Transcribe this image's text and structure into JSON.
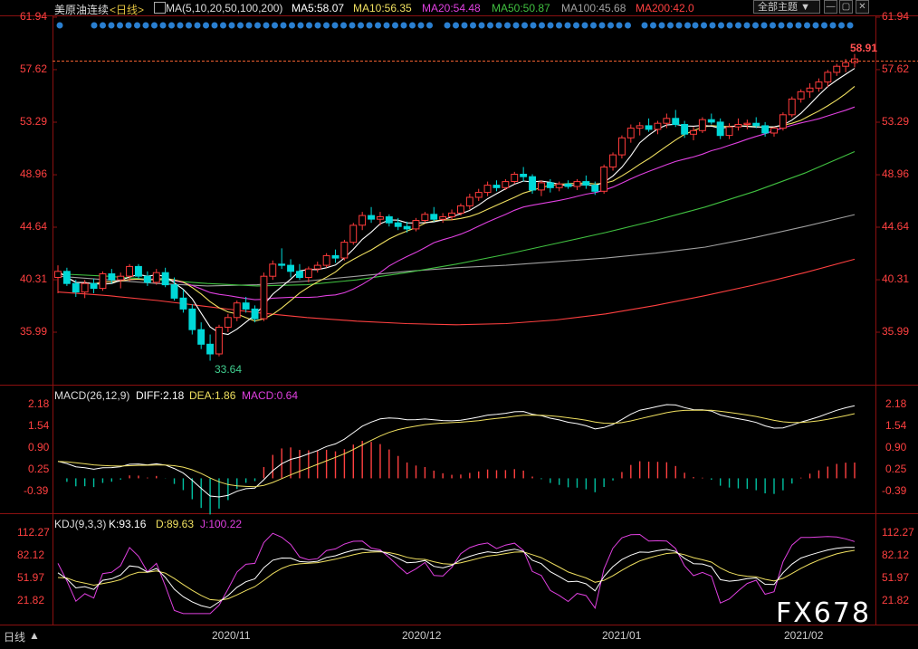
{
  "header": {
    "instrument": "美原油连续",
    "period": "<日线>",
    "ma_params": "MA(5,10,20,50,100,200)",
    "ma5": "MA5:58.07",
    "ma10": "MA10:56.35",
    "ma20": "MA20:54.48",
    "ma50": "MA50:50.87",
    "ma100": "MA100:45.68",
    "ma200": "MA200:42.0",
    "theme_button": "全部主题",
    "colors": {
      "ma5": "#ffffff",
      "ma10": "#f0e060",
      "ma20": "#e040e0",
      "ma50": "#40c040",
      "ma100": "#a0a0a0",
      "ma200": "#ff4040"
    }
  },
  "price_panel": {
    "y_ticks": [
      "61.94",
      "57.62",
      "53.29",
      "48.96",
      "44.64",
      "40.31",
      "35.99"
    ],
    "high_label": "58.91",
    "low_label": "33.64"
  },
  "macd_panel": {
    "title": "MACD(26,12,9)",
    "diff": "DIFF:2.18",
    "dea": "DEA:1.86",
    "macd": "MACD:0.64",
    "y_ticks": [
      "2.18",
      "1.54",
      "0.90",
      "0.25",
      "-0.39"
    ]
  },
  "kdj_panel": {
    "title": "KDJ(9,3,3)",
    "k": "K:93.16",
    "d": "D:89.63",
    "j": "J:100.22",
    "y_ticks": [
      "112.27",
      "82.12",
      "51.97",
      "21.82"
    ]
  },
  "x_axis": {
    "period_label": "日线",
    "labels": [
      "2020/11",
      "2020/12",
      "2021/01",
      "2021/02"
    ]
  },
  "watermark": "FX678",
  "chart_data": [
    {
      "type": "candlestick",
      "title": "美原油连续",
      "ylim": [
        31.5,
        63.5
      ],
      "candles": [
        [
          40.5,
          41.5,
          39.2,
          41.0
        ],
        [
          41.0,
          41.3,
          39.8,
          40.0
        ],
        [
          40.0,
          40.3,
          38.9,
          39.3
        ],
        [
          39.3,
          40.3,
          38.8,
          40.0
        ],
        [
          40.0,
          40.4,
          39.2,
          39.6
        ],
        [
          39.6,
          41.0,
          39.4,
          40.8
        ],
        [
          40.8,
          41.2,
          40.0,
          40.3
        ],
        [
          40.3,
          40.9,
          39.6,
          40.6
        ],
        [
          40.6,
          41.6,
          40.2,
          41.4
        ],
        [
          41.4,
          41.6,
          40.4,
          40.6
        ],
        [
          40.6,
          41.0,
          39.8,
          40.1
        ],
        [
          40.1,
          41.2,
          39.9,
          40.9
        ],
        [
          40.9,
          41.3,
          39.7,
          39.9
        ],
        [
          39.9,
          40.5,
          38.6,
          38.8
        ],
        [
          38.8,
          39.5,
          37.6,
          37.9
        ],
        [
          37.9,
          38.3,
          35.8,
          36.2
        ],
        [
          36.2,
          36.8,
          34.6,
          35.0
        ],
        [
          35.0,
          35.8,
          33.64,
          34.2
        ],
        [
          34.2,
          36.6,
          34.0,
          36.4
        ],
        [
          36.4,
          37.5,
          36.0,
          37.2
        ],
        [
          37.2,
          38.6,
          36.9,
          38.4
        ],
        [
          38.4,
          38.9,
          37.6,
          37.9
        ],
        [
          37.9,
          38.2,
          36.8,
          37.1
        ],
        [
          37.1,
          40.9,
          36.9,
          40.6
        ],
        [
          40.6,
          41.9,
          40.3,
          41.6
        ],
        [
          41.6,
          42.9,
          41.2,
          41.5
        ],
        [
          41.5,
          42.0,
          40.5,
          41.0
        ],
        [
          41.0,
          41.6,
          40.3,
          40.5
        ],
        [
          40.5,
          41.4,
          40.1,
          41.2
        ],
        [
          41.2,
          41.8,
          40.9,
          41.5
        ],
        [
          41.5,
          42.5,
          41.3,
          42.3
        ],
        [
          42.3,
          42.8,
          41.7,
          42.1
        ],
        [
          42.1,
          43.6,
          41.9,
          43.4
        ],
        [
          43.4,
          45.0,
          43.2,
          44.8
        ],
        [
          44.8,
          45.9,
          44.4,
          45.6
        ],
        [
          45.6,
          46.3,
          45.0,
          45.3
        ],
        [
          45.3,
          45.9,
          44.8,
          45.5
        ],
        [
          45.5,
          45.7,
          44.7,
          45.0
        ],
        [
          45.0,
          45.4,
          44.4,
          44.7
        ],
        [
          44.7,
          45.1,
          44.2,
          44.5
        ],
        [
          44.5,
          45.4,
          44.3,
          45.2
        ],
        [
          45.2,
          45.9,
          45.0,
          45.7
        ],
        [
          45.7,
          46.3,
          45.1,
          45.3
        ],
        [
          45.3,
          45.8,
          45.0,
          45.5
        ],
        [
          45.5,
          46.1,
          45.2,
          45.8
        ],
        [
          45.8,
          46.6,
          45.6,
          46.4
        ],
        [
          46.4,
          47.4,
          46.1,
          47.1
        ],
        [
          47.1,
          47.8,
          46.8,
          47.5
        ],
        [
          47.5,
          48.4,
          47.2,
          48.1
        ],
        [
          48.1,
          48.5,
          47.6,
          47.9
        ],
        [
          47.9,
          48.6,
          47.7,
          48.4
        ],
        [
          48.4,
          49.2,
          48.2,
          49.0
        ],
        [
          49.0,
          49.6,
          48.4,
          48.8
        ],
        [
          48.8,
          49.0,
          47.4,
          47.7
        ],
        [
          47.7,
          48.5,
          47.2,
          48.3
        ],
        [
          48.3,
          48.6,
          47.5,
          47.9
        ],
        [
          47.9,
          48.4,
          47.6,
          48.2
        ],
        [
          48.2,
          48.5,
          47.8,
          48.0
        ],
        [
          48.0,
          48.6,
          47.7,
          48.4
        ],
        [
          48.4,
          48.9,
          47.8,
          48.1
        ],
        [
          48.1,
          48.4,
          47.3,
          47.6
        ],
        [
          47.6,
          49.8,
          47.4,
          49.6
        ],
        [
          49.6,
          50.8,
          49.3,
          50.6
        ],
        [
          50.6,
          52.2,
          50.3,
          52.0
        ],
        [
          52.0,
          53.1,
          51.6,
          52.8
        ],
        [
          52.8,
          53.3,
          52.2,
          53.0
        ],
        [
          53.0,
          53.6,
          52.5,
          52.7
        ],
        [
          52.7,
          53.4,
          52.3,
          53.2
        ],
        [
          53.2,
          54.0,
          52.8,
          53.6
        ],
        [
          53.6,
          54.3,
          52.9,
          53.1
        ],
        [
          53.1,
          53.4,
          52.0,
          52.3
        ],
        [
          52.3,
          52.9,
          51.8,
          52.6
        ],
        [
          52.6,
          53.7,
          52.4,
          53.5
        ],
        [
          53.5,
          54.0,
          53.1,
          53.3
        ],
        [
          53.3,
          53.6,
          51.9,
          52.2
        ],
        [
          52.2,
          53.2,
          51.9,
          52.9
        ],
        [
          52.9,
          53.6,
          52.6,
          53.1
        ],
        [
          53.1,
          53.5,
          52.7,
          53.2
        ],
        [
          53.2,
          53.7,
          52.8,
          53.0
        ],
        [
          53.0,
          53.3,
          52.1,
          52.4
        ],
        [
          52.4,
          52.9,
          52.1,
          52.8
        ],
        [
          52.8,
          54.1,
          52.6,
          53.9
        ],
        [
          53.9,
          55.4,
          53.7,
          55.2
        ],
        [
          55.2,
          56.0,
          54.9,
          55.8
        ],
        [
          55.8,
          56.5,
          55.3,
          56.1
        ],
        [
          56.1,
          56.9,
          55.8,
          56.6
        ],
        [
          56.6,
          57.6,
          56.2,
          57.4
        ],
        [
          57.4,
          58.1,
          57.1,
          57.9
        ],
        [
          57.9,
          58.5,
          57.4,
          58.2
        ],
        [
          58.2,
          58.91,
          57.8,
          58.5
        ]
      ],
      "ma_series": {
        "MA200": {
          "x_first": 0,
          "values": [
            39.3,
            39.0,
            38.6,
            38.1,
            37.6,
            37.2,
            36.9,
            36.7,
            36.6,
            36.7,
            37.0,
            37.5,
            38.2,
            39.0,
            39.9,
            40.9,
            42.0
          ]
        },
        "MA100": {
          "x_first": 0,
          "values": [
            40.6,
            40.3,
            40.0,
            39.8,
            39.9,
            40.2,
            40.6,
            41.0,
            41.3,
            41.5,
            41.8,
            42.1,
            42.5,
            43.0,
            43.8,
            44.7,
            45.68
          ]
        },
        "MA50": {
          "x_first": 0,
          "values": [
            40.8,
            40.6,
            40.3,
            40.0,
            39.8,
            39.9,
            40.3,
            40.9,
            41.6,
            42.4,
            43.3,
            44.2,
            45.2,
            46.3,
            47.6,
            49.1,
            50.87
          ]
        }
      }
    },
    {
      "type": "bar",
      "title": "MACD(26,12,9)",
      "series": [
        {
          "name": "DIFF",
          "last": 2.18
        },
        {
          "name": "DEA",
          "last": 1.86
        },
        {
          "name": "MACD",
          "last": 0.64
        }
      ],
      "ylim": [
        -0.7,
        2.4
      ]
    },
    {
      "type": "line",
      "title": "KDJ(9,3,3)",
      "series": [
        {
          "name": "K",
          "last": 93.16
        },
        {
          "name": "D",
          "last": 89.63
        },
        {
          "name": "J",
          "last": 100.22
        }
      ],
      "ylim": [
        10,
        125
      ]
    }
  ]
}
